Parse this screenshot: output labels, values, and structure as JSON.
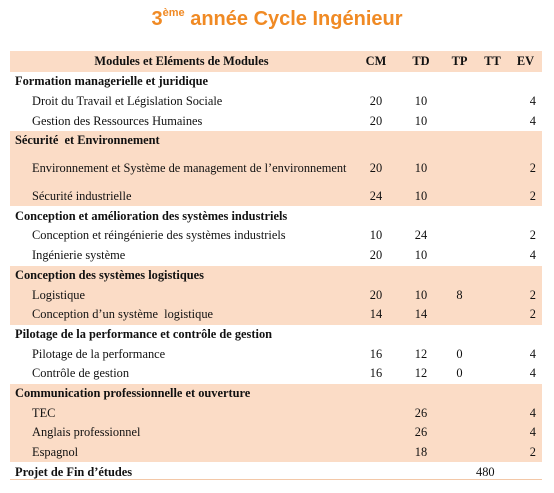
{
  "title": {
    "ordinal": "3",
    "ordinal_suffix": "ème",
    "text": "année Cycle Ingénieur"
  },
  "colors": {
    "title": "#f08a24",
    "shade": "#fbdcc6"
  },
  "headers": {
    "modules": "Modules et Eléments de Modules",
    "cm": "CM",
    "td": "TD",
    "tp": "TP",
    "tt": "TT",
    "ev": "EV"
  },
  "groups": [
    {
      "title": "Formation managerielle et juridique",
      "items": [
        {
          "name": "Droit du Travail et Législation Sociale",
          "cm": "20",
          "td": "10",
          "tp": "",
          "tt": "",
          "ev": "4"
        },
        {
          "name": "Gestion des Ressources Humaines",
          "cm": "20",
          "td": "10",
          "tp": "",
          "tt": "",
          "ev": "4"
        }
      ]
    },
    {
      "title": "Sécurité  et Environnement",
      "items": [
        {
          "name": "Environnement et Système de management de l’environnement",
          "cm": "20",
          "td": "10",
          "tp": "",
          "tt": "",
          "ev": "2"
        },
        {
          "name": "Sécurité industrielle",
          "cm": "24",
          "td": "10",
          "tp": "",
          "tt": "",
          "ev": "2"
        }
      ]
    },
    {
      "title": "Conception et amélioration des systèmes industriels",
      "items": [
        {
          "name": "Conception et réingénierie des systèmes industriels",
          "cm": "10",
          "td": "24",
          "tp": "",
          "tt": "",
          "ev": "2"
        },
        {
          "name": "Ingénierie système",
          "cm": "20",
          "td": "10",
          "tp": "",
          "tt": "",
          "ev": "4"
        }
      ]
    },
    {
      "title": "Conception des systèmes logistiques",
      "items": [
        {
          "name": "Logistique",
          "cm": "20",
          "td": "10",
          "tp": "8",
          "tt": "",
          "ev": "2"
        },
        {
          "name": "Conception d’un système  logistique",
          "cm": "14",
          "td": "14",
          "tp": "",
          "tt": "",
          "ev": "2"
        }
      ]
    },
    {
      "title": "Pilotage de la performance et contrôle de gestion",
      "items": [
        {
          "name": "Pilotage de la performance",
          "cm": "16",
          "td": "12",
          "tp": "0",
          "tt": "",
          "ev": "4"
        },
        {
          "name": "Contrôle de gestion",
          "cm": "16",
          "td": "12",
          "tp": "0",
          "tt": "",
          "ev": "4"
        }
      ]
    },
    {
      "title": "Communication professionnelle et ouverture",
      "items": [
        {
          "name": "TEC",
          "cm": "",
          "td": "26",
          "tp": "",
          "tt": "",
          "ev": "4"
        },
        {
          "name": "Anglais professionnel",
          "cm": "",
          "td": "26",
          "tp": "",
          "tt": "",
          "ev": "4"
        },
        {
          "name": "Espagnol",
          "cm": "",
          "td": "18",
          "tp": "",
          "tt": "",
          "ev": "2"
        }
      ]
    }
  ],
  "final": {
    "name": "Projet de Fin d’études",
    "tt": "480"
  }
}
